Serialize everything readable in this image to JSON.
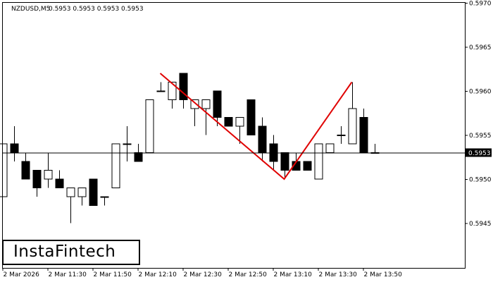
{
  "header": {
    "symbol": "NZDUSD,M5",
    "ohlc": "0.5953 0.5953 0.5953 0.5953"
  },
  "logo": {
    "text": "InstaFintech"
  },
  "colors": {
    "pattern_line": "#e00000",
    "candle_up": "#ffffff",
    "candle_down": "#000000",
    "axis": "#000000",
    "current_price_label_bg": "#000000",
    "current_price_label_text": "#ffffff"
  },
  "chart_data": {
    "type": "candlestick",
    "title": "NZDUSD,M5",
    "y_range": [
      0.594,
      0.597
    ],
    "y_ticks": [
      "0.5970",
      "0.5965",
      "0.5960",
      "0.5955",
      "0.5950",
      "0.5945"
    ],
    "x_tick_labels": [
      "2 Mar 2026",
      "2 Mar 11:30",
      "2 Mar 11:50",
      "2 Mar 12:10",
      "2 Mar 12:30",
      "2 Mar 12:50",
      "2 Mar 13:10",
      "2 Mar 13:30",
      "2 Mar 13:50"
    ],
    "current_price": "0.5953",
    "candles": [
      {
        "o": 0.5948,
        "h": 0.5954,
        "l": 0.5948,
        "c": 0.5954
      },
      {
        "o": 0.5954,
        "h": 0.5956,
        "l": 0.5952,
        "c": 0.5953
      },
      {
        "o": 0.5952,
        "h": 0.5953,
        "l": 0.595,
        "c": 0.595
      },
      {
        "o": 0.5951,
        "h": 0.5951,
        "l": 0.5948,
        "c": 0.5949
      },
      {
        "o": 0.595,
        "h": 0.5953,
        "l": 0.5949,
        "c": 0.5951
      },
      {
        "o": 0.595,
        "h": 0.5951,
        "l": 0.5949,
        "c": 0.5949
      },
      {
        "o": 0.5948,
        "h": 0.5949,
        "l": 0.5945,
        "c": 0.5949
      },
      {
        "o": 0.5948,
        "h": 0.5949,
        "l": 0.5947,
        "c": 0.5949
      },
      {
        "o": 0.595,
        "h": 0.595,
        "l": 0.5947,
        "c": 0.5947
      },
      {
        "o": 0.5948,
        "h": 0.5948,
        "l": 0.5947,
        "c": 0.5948
      },
      {
        "o": 0.5949,
        "h": 0.5954,
        "l": 0.5949,
        "c": 0.5954
      },
      {
        "o": 0.5954,
        "h": 0.5956,
        "l": 0.5952,
        "c": 0.5954
      },
      {
        "o": 0.5953,
        "h": 0.5954,
        "l": 0.5952,
        "c": 0.5952
      },
      {
        "o": 0.5953,
        "h": 0.5959,
        "l": 0.5953,
        "c": 0.5959
      },
      {
        "o": 0.596,
        "h": 0.5961,
        "l": 0.596,
        "c": 0.596
      },
      {
        "o": 0.5959,
        "h": 0.5961,
        "l": 0.5958,
        "c": 0.5961
      },
      {
        "o": 0.5962,
        "h": 0.5962,
        "l": 0.5958,
        "c": 0.5959
      },
      {
        "o": 0.5958,
        "h": 0.5959,
        "l": 0.5956,
        "c": 0.5959
      },
      {
        "o": 0.5958,
        "h": 0.5959,
        "l": 0.5955,
        "c": 0.5959
      },
      {
        "o": 0.596,
        "h": 0.596,
        "l": 0.5956,
        "c": 0.5957
      },
      {
        "o": 0.5957,
        "h": 0.5957,
        "l": 0.5956,
        "c": 0.5956
      },
      {
        "o": 0.5956,
        "h": 0.5957,
        "l": 0.5954,
        "c": 0.5957
      },
      {
        "o": 0.5959,
        "h": 0.5959,
        "l": 0.5955,
        "c": 0.5955
      },
      {
        "o": 0.5956,
        "h": 0.5957,
        "l": 0.5952,
        "c": 0.5953
      },
      {
        "o": 0.5954,
        "h": 0.5955,
        "l": 0.5951,
        "c": 0.5952
      },
      {
        "o": 0.5953,
        "h": 0.5953,
        "l": 0.595,
        "c": 0.5951
      },
      {
        "o": 0.5952,
        "h": 0.5953,
        "l": 0.5951,
        "c": 0.5951
      },
      {
        "o": 0.5952,
        "h": 0.5952,
        "l": 0.5951,
        "c": 0.5951
      },
      {
        "o": 0.595,
        "h": 0.5954,
        "l": 0.595,
        "c": 0.5954
      },
      {
        "o": 0.5953,
        "h": 0.5954,
        "l": 0.5953,
        "c": 0.5954
      },
      {
        "o": 0.5955,
        "h": 0.5956,
        "l": 0.5954,
        "c": 0.5955
      },
      {
        "o": 0.5954,
        "h": 0.5961,
        "l": 0.5954,
        "c": 0.5958
      },
      {
        "o": 0.5957,
        "h": 0.5958,
        "l": 0.5953,
        "c": 0.5953
      },
      {
        "o": 0.5953,
        "h": 0.5954,
        "l": 0.5953,
        "c": 0.5953
      }
    ],
    "pattern_line": [
      {
        "candle": 14,
        "price": 0.5962
      },
      {
        "candle": 25,
        "price": 0.595
      },
      {
        "candle": 31,
        "price": 0.5961
      }
    ],
    "grid": false
  }
}
